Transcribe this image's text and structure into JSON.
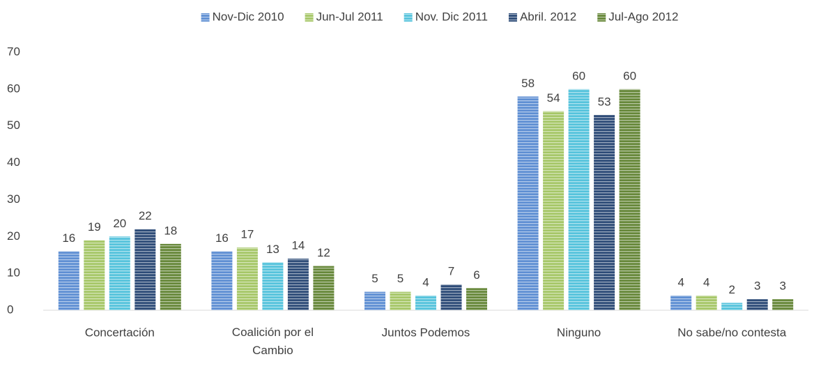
{
  "chart_data": {
    "type": "bar",
    "categories": [
      "Concertación",
      "Coalición por el Cambio",
      "Juntos Podemos",
      "Ninguno",
      "No sabe/no contesta"
    ],
    "series": [
      {
        "name": "Nov-Dic 2010",
        "color": "#5f8fd3",
        "values": [
          16,
          16,
          5,
          58,
          4
        ]
      },
      {
        "name": "Jun-Jul 2011",
        "color": "#a6c768",
        "values": [
          19,
          17,
          5,
          54,
          4
        ]
      },
      {
        "name": "Nov. Dic 2011",
        "color": "#56c3dc",
        "values": [
          20,
          13,
          4,
          60,
          2
        ]
      },
      {
        "name": "Abril. 2012",
        "color": "#2e4c78",
        "values": [
          22,
          14,
          7,
          53,
          3
        ]
      },
      {
        "name": "Jul-Ago 2012",
        "color": "#67883a",
        "values": [
          18,
          12,
          6,
          60,
          3
        ]
      }
    ],
    "ylim": [
      0,
      70
    ],
    "yticks": [
      0,
      10,
      20,
      30,
      40,
      50,
      60,
      70
    ],
    "grid": false,
    "legend": "top"
  }
}
